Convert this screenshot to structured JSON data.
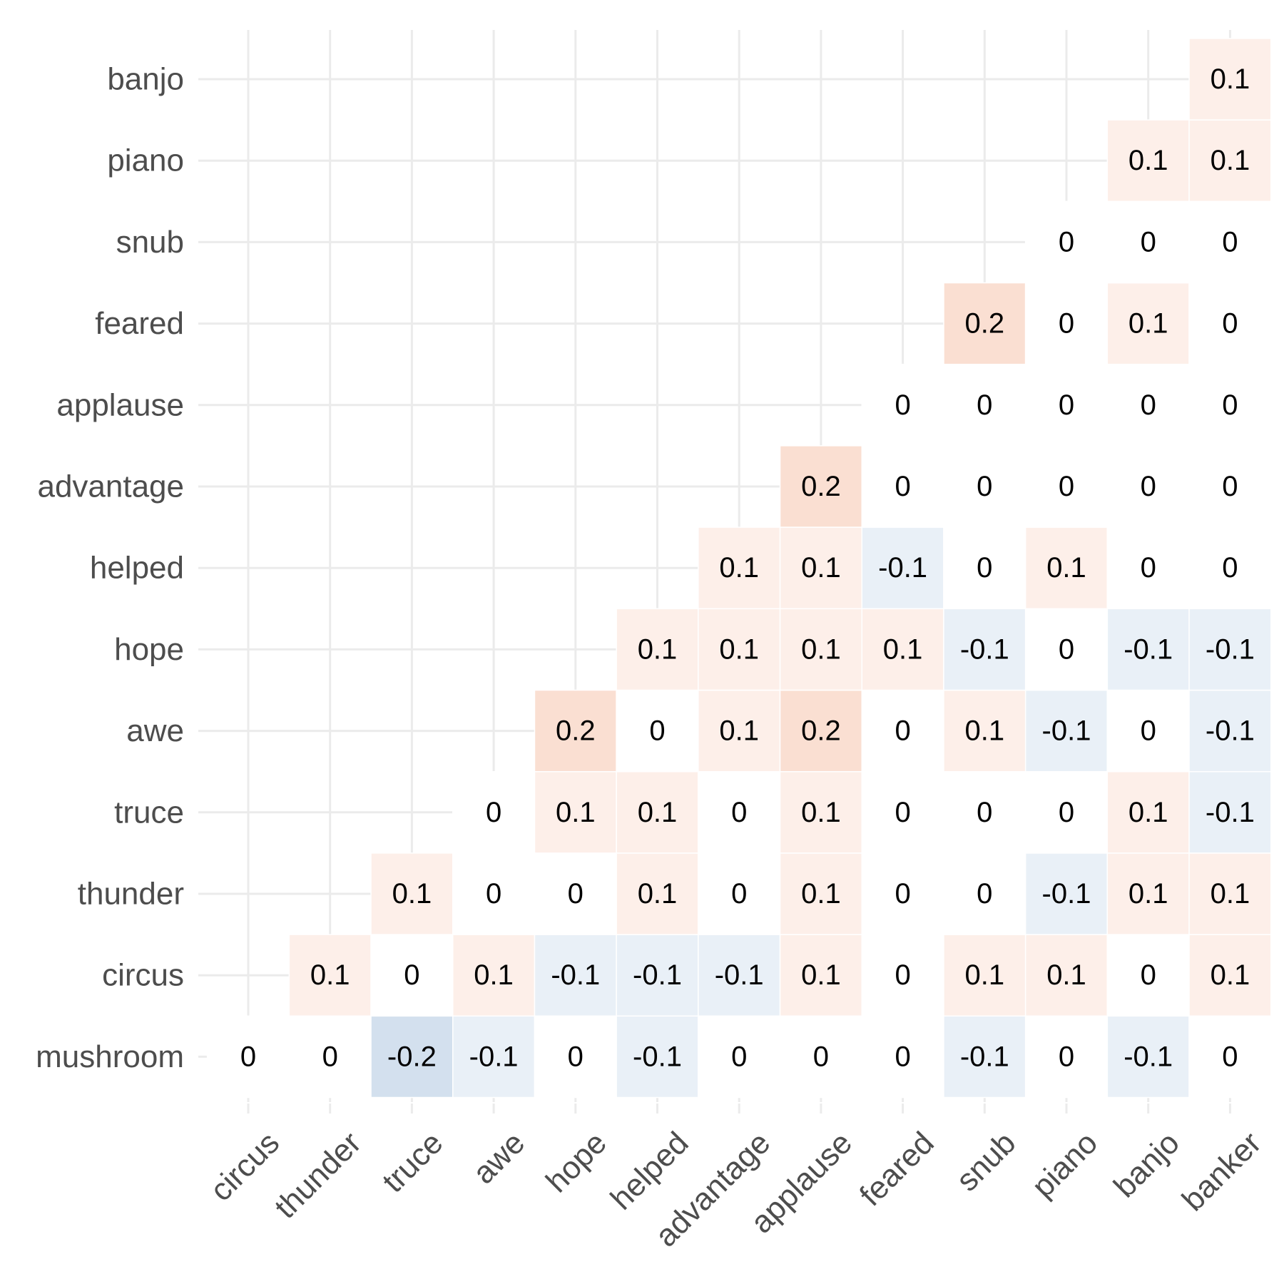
{
  "chart_data": {
    "type": "heatmap",
    "title": "",
    "xlabel": "",
    "ylabel": "",
    "x_categories": [
      "circus",
      "thunder",
      "truce",
      "awe",
      "hope",
      "helped",
      "advantage",
      "applause",
      "feared",
      "snub",
      "piano",
      "banjo",
      "banker"
    ],
    "y_categories": [
      "mushroom",
      "circus",
      "thunder",
      "truce",
      "awe",
      "hope",
      "helped",
      "advantage",
      "applause",
      "feared",
      "snub",
      "piano",
      "banjo"
    ],
    "color_scale": {
      "negative": "#2166ac",
      "zero": "#ffffff",
      "positive": "#e85d20",
      "range": [
        -1,
        1
      ]
    },
    "grid": true,
    "legend": "none",
    "rows": [
      {
        "y": "mushroom",
        "values": [
          0,
          0,
          -0.2,
          -0.1,
          0,
          -0.1,
          0,
          0,
          0,
          -0.1,
          0,
          -0.1,
          0
        ],
        "labels": [
          "0",
          "0",
          "-0.2",
          "-0.1",
          "0",
          "-0.1",
          "0",
          "0",
          "0",
          "-0.1",
          "0",
          "-0.1",
          "0"
        ]
      },
      {
        "y": "circus",
        "values": [
          null,
          0.1,
          0,
          0.1,
          -0.1,
          -0.1,
          -0.1,
          0.1,
          0,
          0.1,
          0.1,
          0,
          0.1
        ],
        "labels": [
          null,
          "0.1",
          "0",
          "0.1",
          "-0.1",
          "-0.1",
          "-0.1",
          "0.1",
          "0",
          "0.1",
          "0.1",
          "0",
          "0.1"
        ]
      },
      {
        "y": "thunder",
        "values": [
          null,
          null,
          0.1,
          0,
          0,
          0.1,
          0,
          0.1,
          0,
          0,
          -0.1,
          0.1,
          0.1
        ],
        "labels": [
          null,
          null,
          "0.1",
          "0",
          "0",
          "0.1",
          "0",
          "0.1",
          "0",
          "0",
          "-0.1",
          "0.1",
          "0.1"
        ]
      },
      {
        "y": "truce",
        "values": [
          null,
          null,
          null,
          0,
          0.1,
          0.1,
          0,
          0.1,
          0,
          0,
          0,
          0.1,
          -0.1
        ],
        "labels": [
          null,
          null,
          null,
          "0",
          "0.1",
          "0.1",
          "0",
          "0.1",
          "0",
          "0",
          "0",
          "0.1",
          "-0.1"
        ]
      },
      {
        "y": "awe",
        "values": [
          null,
          null,
          null,
          null,
          0.2,
          0,
          0.1,
          0.2,
          0,
          0.1,
          -0.1,
          0,
          -0.1
        ],
        "labels": [
          null,
          null,
          null,
          null,
          "0.2",
          "0",
          "0.1",
          "0.2",
          "0",
          "0.1",
          "-0.1",
          "0",
          "-0.1"
        ]
      },
      {
        "y": "hope",
        "values": [
          null,
          null,
          null,
          null,
          null,
          0.1,
          0.1,
          0.1,
          0.1,
          -0.1,
          0,
          -0.1,
          -0.1
        ],
        "labels": [
          null,
          null,
          null,
          null,
          null,
          "0.1",
          "0.1",
          "0.1",
          "0.1",
          "-0.1",
          "0",
          "-0.1",
          "-0.1"
        ]
      },
      {
        "y": "helped",
        "values": [
          null,
          null,
          null,
          null,
          null,
          null,
          0.1,
          0.1,
          -0.1,
          0,
          0.1,
          0,
          0
        ],
        "labels": [
          null,
          null,
          null,
          null,
          null,
          null,
          "0.1",
          "0.1",
          "-0.1",
          "0",
          "0.1",
          "0",
          "0"
        ]
      },
      {
        "y": "advantage",
        "values": [
          null,
          null,
          null,
          null,
          null,
          null,
          null,
          0.2,
          0,
          0,
          0,
          0,
          0
        ],
        "labels": [
          null,
          null,
          null,
          null,
          null,
          null,
          null,
          "0.2",
          "0",
          "0",
          "0",
          "0",
          "0"
        ]
      },
      {
        "y": "applause",
        "values": [
          null,
          null,
          null,
          null,
          null,
          null,
          null,
          null,
          0,
          0,
          0,
          0,
          0
        ],
        "labels": [
          null,
          null,
          null,
          null,
          null,
          null,
          null,
          null,
          "0",
          "0",
          "0",
          "0",
          "0"
        ]
      },
      {
        "y": "feared",
        "values": [
          null,
          null,
          null,
          null,
          null,
          null,
          null,
          null,
          null,
          0.2,
          0,
          0.1,
          0
        ],
        "labels": [
          null,
          null,
          null,
          null,
          null,
          null,
          null,
          null,
          null,
          "0.2",
          "0",
          "0.1",
          "0"
        ]
      },
      {
        "y": "snub",
        "values": [
          null,
          null,
          null,
          null,
          null,
          null,
          null,
          null,
          null,
          null,
          0,
          0,
          0
        ],
        "labels": [
          null,
          null,
          null,
          null,
          null,
          null,
          null,
          null,
          null,
          null,
          "0",
          "0",
          "0"
        ]
      },
      {
        "y": "piano",
        "values": [
          null,
          null,
          null,
          null,
          null,
          null,
          null,
          null,
          null,
          null,
          null,
          0.1,
          0.1
        ],
        "labels": [
          null,
          null,
          null,
          null,
          null,
          null,
          null,
          null,
          null,
          null,
          null,
          "0.1",
          "0.1"
        ]
      },
      {
        "y": "banjo",
        "values": [
          null,
          null,
          null,
          null,
          null,
          null,
          null,
          null,
          null,
          null,
          null,
          null,
          0.1
        ],
        "labels": [
          null,
          null,
          null,
          null,
          null,
          null,
          null,
          null,
          null,
          null,
          null,
          null,
          "0.1"
        ]
      }
    ]
  }
}
